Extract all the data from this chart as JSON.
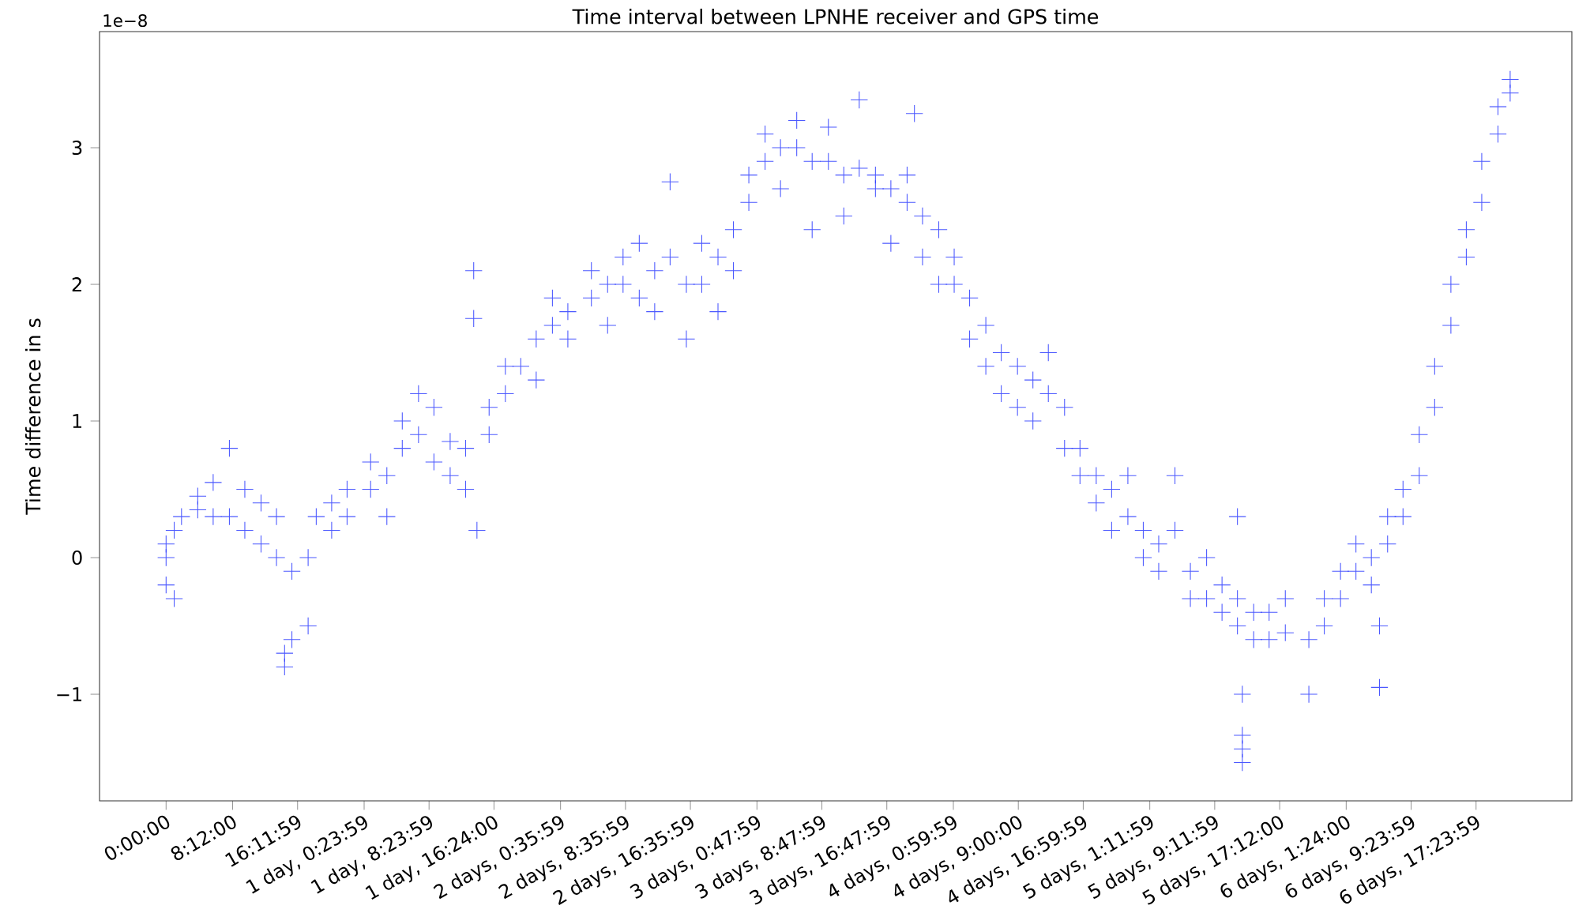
{
  "chart_data": {
    "type": "scatter",
    "title": "Time interval between LPNHE receiver and GPS time",
    "ylabel": "Time difference in s",
    "annotations": [
      "1e−8"
    ],
    "marker": "cross",
    "grid": false,
    "xlim": [
      -8.2,
      173.2
    ],
    "ylim": [
      -1.78,
      3.85
    ],
    "xticks": [
      {
        "value": 0,
        "label": "0:00:00"
      },
      {
        "value": 8.2,
        "label": "8:12:00"
      },
      {
        "value": 16.1997,
        "label": "16:11:59"
      },
      {
        "value": 24.3997,
        "label": "1 day, 0:23:59"
      },
      {
        "value": 32.3997,
        "label": "1 day, 8:23:59"
      },
      {
        "value": 40.4,
        "label": "1 day, 16:24:00"
      },
      {
        "value": 48.5997,
        "label": "2 days, 0:35:59"
      },
      {
        "value": 56.5997,
        "label": "2 days, 8:35:59"
      },
      {
        "value": 64.5997,
        "label": "2 days, 16:35:59"
      },
      {
        "value": 72.7997,
        "label": "3 days, 0:47:59"
      },
      {
        "value": 80.7997,
        "label": "3 days, 8:47:59"
      },
      {
        "value": 88.7997,
        "label": "3 days, 16:47:59"
      },
      {
        "value": 96.9997,
        "label": "4 days, 0:59:59"
      },
      {
        "value": 105.0,
        "label": "4 days, 9:00:00"
      },
      {
        "value": 112.9997,
        "label": "4 days, 16:59:59"
      },
      {
        "value": 121.1997,
        "label": "5 days, 1:11:59"
      },
      {
        "value": 129.1997,
        "label": "5 days, 9:11:59"
      },
      {
        "value": 137.2,
        "label": "5 days, 17:12:00"
      },
      {
        "value": 145.4,
        "label": "6 days, 1:24:00"
      },
      {
        "value": 153.3997,
        "label": "6 days, 9:23:59"
      },
      {
        "value": 161.3997,
        "label": "6 days, 17:23:59"
      }
    ],
    "yticks": [
      {
        "value": -1,
        "label": "−1"
      },
      0,
      1,
      2,
      3
    ],
    "series": [
      {
        "color": "#2b3bff",
        "x": [
          0,
          0,
          0,
          1.0,
          1.0,
          1.9,
          3.9,
          3.9,
          5.8,
          5.8,
          7.8,
          7.8,
          9.7,
          9.7,
          11.7,
          11.7,
          13.6,
          13.6,
          14.6,
          14.6,
          15.5,
          15.5,
          17.5,
          17.5,
          18.5,
          20.4,
          20.4,
          22.3,
          22.3,
          25.2,
          25.2,
          27.2,
          27.2,
          29.1,
          29.1,
          31.1,
          31.1,
          33.0,
          33.0,
          35.0,
          35.0,
          36.9,
          36.9,
          37.9,
          37.9,
          38.3,
          39.8,
          39.8,
          41.8,
          41.8,
          43.7,
          45.6,
          45.6,
          47.6,
          47.6,
          49.5,
          49.5,
          52.4,
          52.4,
          54.4,
          54.4,
          56.3,
          56.3,
          58.3,
          58.3,
          60.2,
          60.2,
          62.1,
          62.1,
          64.1,
          64.1,
          66.0,
          66.0,
          68.0,
          68.0,
          69.9,
          69.9,
          71.8,
          71.8,
          73.8,
          73.8,
          75.7,
          75.7,
          77.7,
          77.7,
          79.6,
          79.6,
          81.6,
          81.6,
          83.5,
          83.5,
          85.4,
          85.4,
          87.4,
          87.4,
          89.3,
          89.3,
          91.3,
          91.3,
          92.2,
          93.2,
          93.2,
          95.2,
          95.2,
          97.1,
          97.1,
          99.0,
          99.0,
          101.0,
          101.0,
          102.9,
          102.9,
          104.9,
          104.9,
          106.8,
          106.8,
          108.7,
          108.7,
          110.7,
          110.7,
          112.6,
          112.6,
          114.6,
          114.6,
          116.5,
          116.5,
          118.5,
          118.5,
          120.4,
          120.4,
          122.3,
          122.3,
          124.3,
          124.3,
          126.2,
          126.2,
          128.2,
          128.2,
          130.1,
          130.1,
          132.0,
          132.0,
          132.0,
          132.6,
          132.6,
          132.6,
          132.6,
          134.0,
          134.0,
          135.9,
          135.9,
          137.9,
          137.9,
          140.8,
          140.8,
          142.7,
          142.7,
          144.7,
          144.7,
          146.6,
          146.6,
          148.5,
          148.5,
          149.5,
          149.5,
          150.5,
          150.5,
          152.4,
          152.4,
          154.4,
          154.4,
          156.3,
          156.3,
          158.3,
          158.3,
          160.2,
          160.2,
          162.1,
          162.1,
          164.1,
          164.1,
          165.6,
          165.6
        ],
        "values": [
          0,
          -0.2,
          0.1,
          0.2,
          -0.3,
          0.3,
          0.35,
          0.45,
          0.3,
          0.55,
          0.3,
          0.8,
          0.2,
          0.5,
          0.1,
          0.4,
          0,
          0.3,
          -0.7,
          -0.8,
          -0.1,
          -0.6,
          0,
          -0.5,
          0.3,
          0.4,
          0.2,
          0.5,
          0.3,
          0.5,
          0.7,
          0.6,
          0.3,
          0.8,
          1.0,
          0.9,
          1.2,
          1.1,
          0.7,
          0.85,
          0.6,
          0.8,
          0.5,
          2.1,
          1.75,
          0.2,
          0.9,
          1.1,
          1.2,
          1.4,
          1.4,
          1.6,
          1.3,
          1.7,
          1.9,
          1.8,
          1.6,
          1.9,
          2.1,
          2.0,
          1.7,
          2.0,
          2.2,
          1.9,
          2.3,
          2.1,
          1.8,
          2.2,
          2.75,
          2.0,
          1.6,
          2.0,
          2.3,
          2.2,
          1.8,
          2.4,
          2.1,
          2.8,
          2.6,
          2.9,
          3.1,
          3.0,
          2.7,
          3.0,
          3.2,
          2.9,
          2.4,
          2.9,
          3.15,
          2.8,
          2.5,
          2.85,
          3.35,
          2.8,
          2.7,
          2.7,
          2.3,
          2.6,
          2.8,
          3.25,
          2.5,
          2.2,
          2.4,
          2.0,
          2.2,
          2.0,
          1.9,
          1.6,
          1.7,
          1.4,
          1.5,
          1.2,
          1.4,
          1.1,
          1.3,
          1.0,
          1.2,
          1.5,
          1.1,
          0.8,
          0.8,
          0.6,
          0.6,
          0.4,
          0.5,
          0.2,
          0.3,
          0.6,
          0.2,
          0,
          0.1,
          -0.1,
          0.2,
          0.6,
          -0.1,
          -0.3,
          -0.3,
          0,
          -0.4,
          -0.2,
          -0.5,
          -0.3,
          0.3,
          -1.0,
          -1.3,
          -1.4,
          -1.5,
          -0.6,
          -0.4,
          -0.6,
          -0.4,
          -0.55,
          -0.3,
          -0.6,
          -1.0,
          -0.3,
          -0.5,
          -0.1,
          -0.3,
          -0.1,
          0.1,
          -0.2,
          0,
          -0.95,
          -0.5,
          0.1,
          0.3,
          0.3,
          0.5,
          0.6,
          0.9,
          1.1,
          1.4,
          1.7,
          2.0,
          2.2,
          2.4,
          2.6,
          2.9,
          3.1,
          3.3,
          3.5,
          3.4
        ]
      }
    ]
  }
}
